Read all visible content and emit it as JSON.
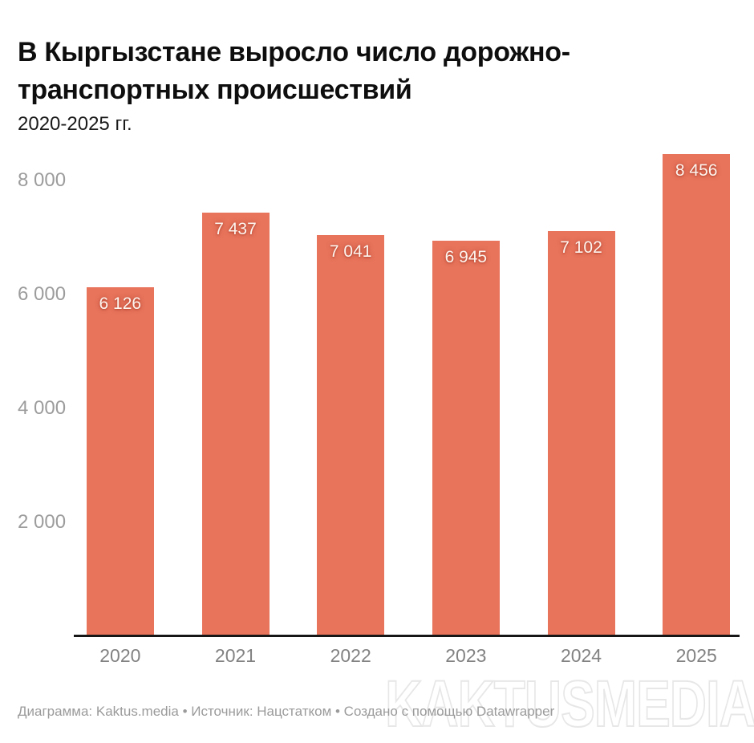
{
  "title": "В Кыргызстане выросло число дорожно-транспортных происшествий",
  "subtitle": "2020-2025 гг.",
  "footer": "Диаграмма: Kaktus.media • Источник: Нацстатком • Создано с помощью Datawrapper",
  "watermark": "KAKTUSMEDIA",
  "colors": {
    "bar": "#e8745c",
    "value_label": "#fdf5ef",
    "y_tick_label": "#9c9c9c",
    "x_axis_label": "#828282",
    "baseline": "#161616",
    "footer_text": "#9b9b9b",
    "watermark_stroke": "#e7e7e7",
    "background": "#ffffff",
    "title_text": "#0e0e0e"
  },
  "chart_data": {
    "type": "bar",
    "title": "В Кыргызстане выросло число дорожно-транспортных происшествий",
    "subtitle": "2020-2025 гг.",
    "categories": [
      "2020",
      "2021",
      "2022",
      "2023",
      "2024",
      "2025"
    ],
    "values": [
      6126,
      7437,
      7041,
      6945,
      7102,
      8456
    ],
    "value_labels": [
      "6 126",
      "7 437",
      "7 041",
      "6 945",
      "7 102",
      "8 456"
    ],
    "yticks": [
      2000,
      4000,
      6000,
      8000
    ],
    "ytick_labels": [
      "2 000",
      "4 000",
      "6 000",
      "8 000"
    ],
    "ylim": [
      0,
      8600
    ],
    "xlabel": "",
    "ylabel": "",
    "grid": false,
    "legend": false,
    "bar_color": "#e8745c"
  }
}
